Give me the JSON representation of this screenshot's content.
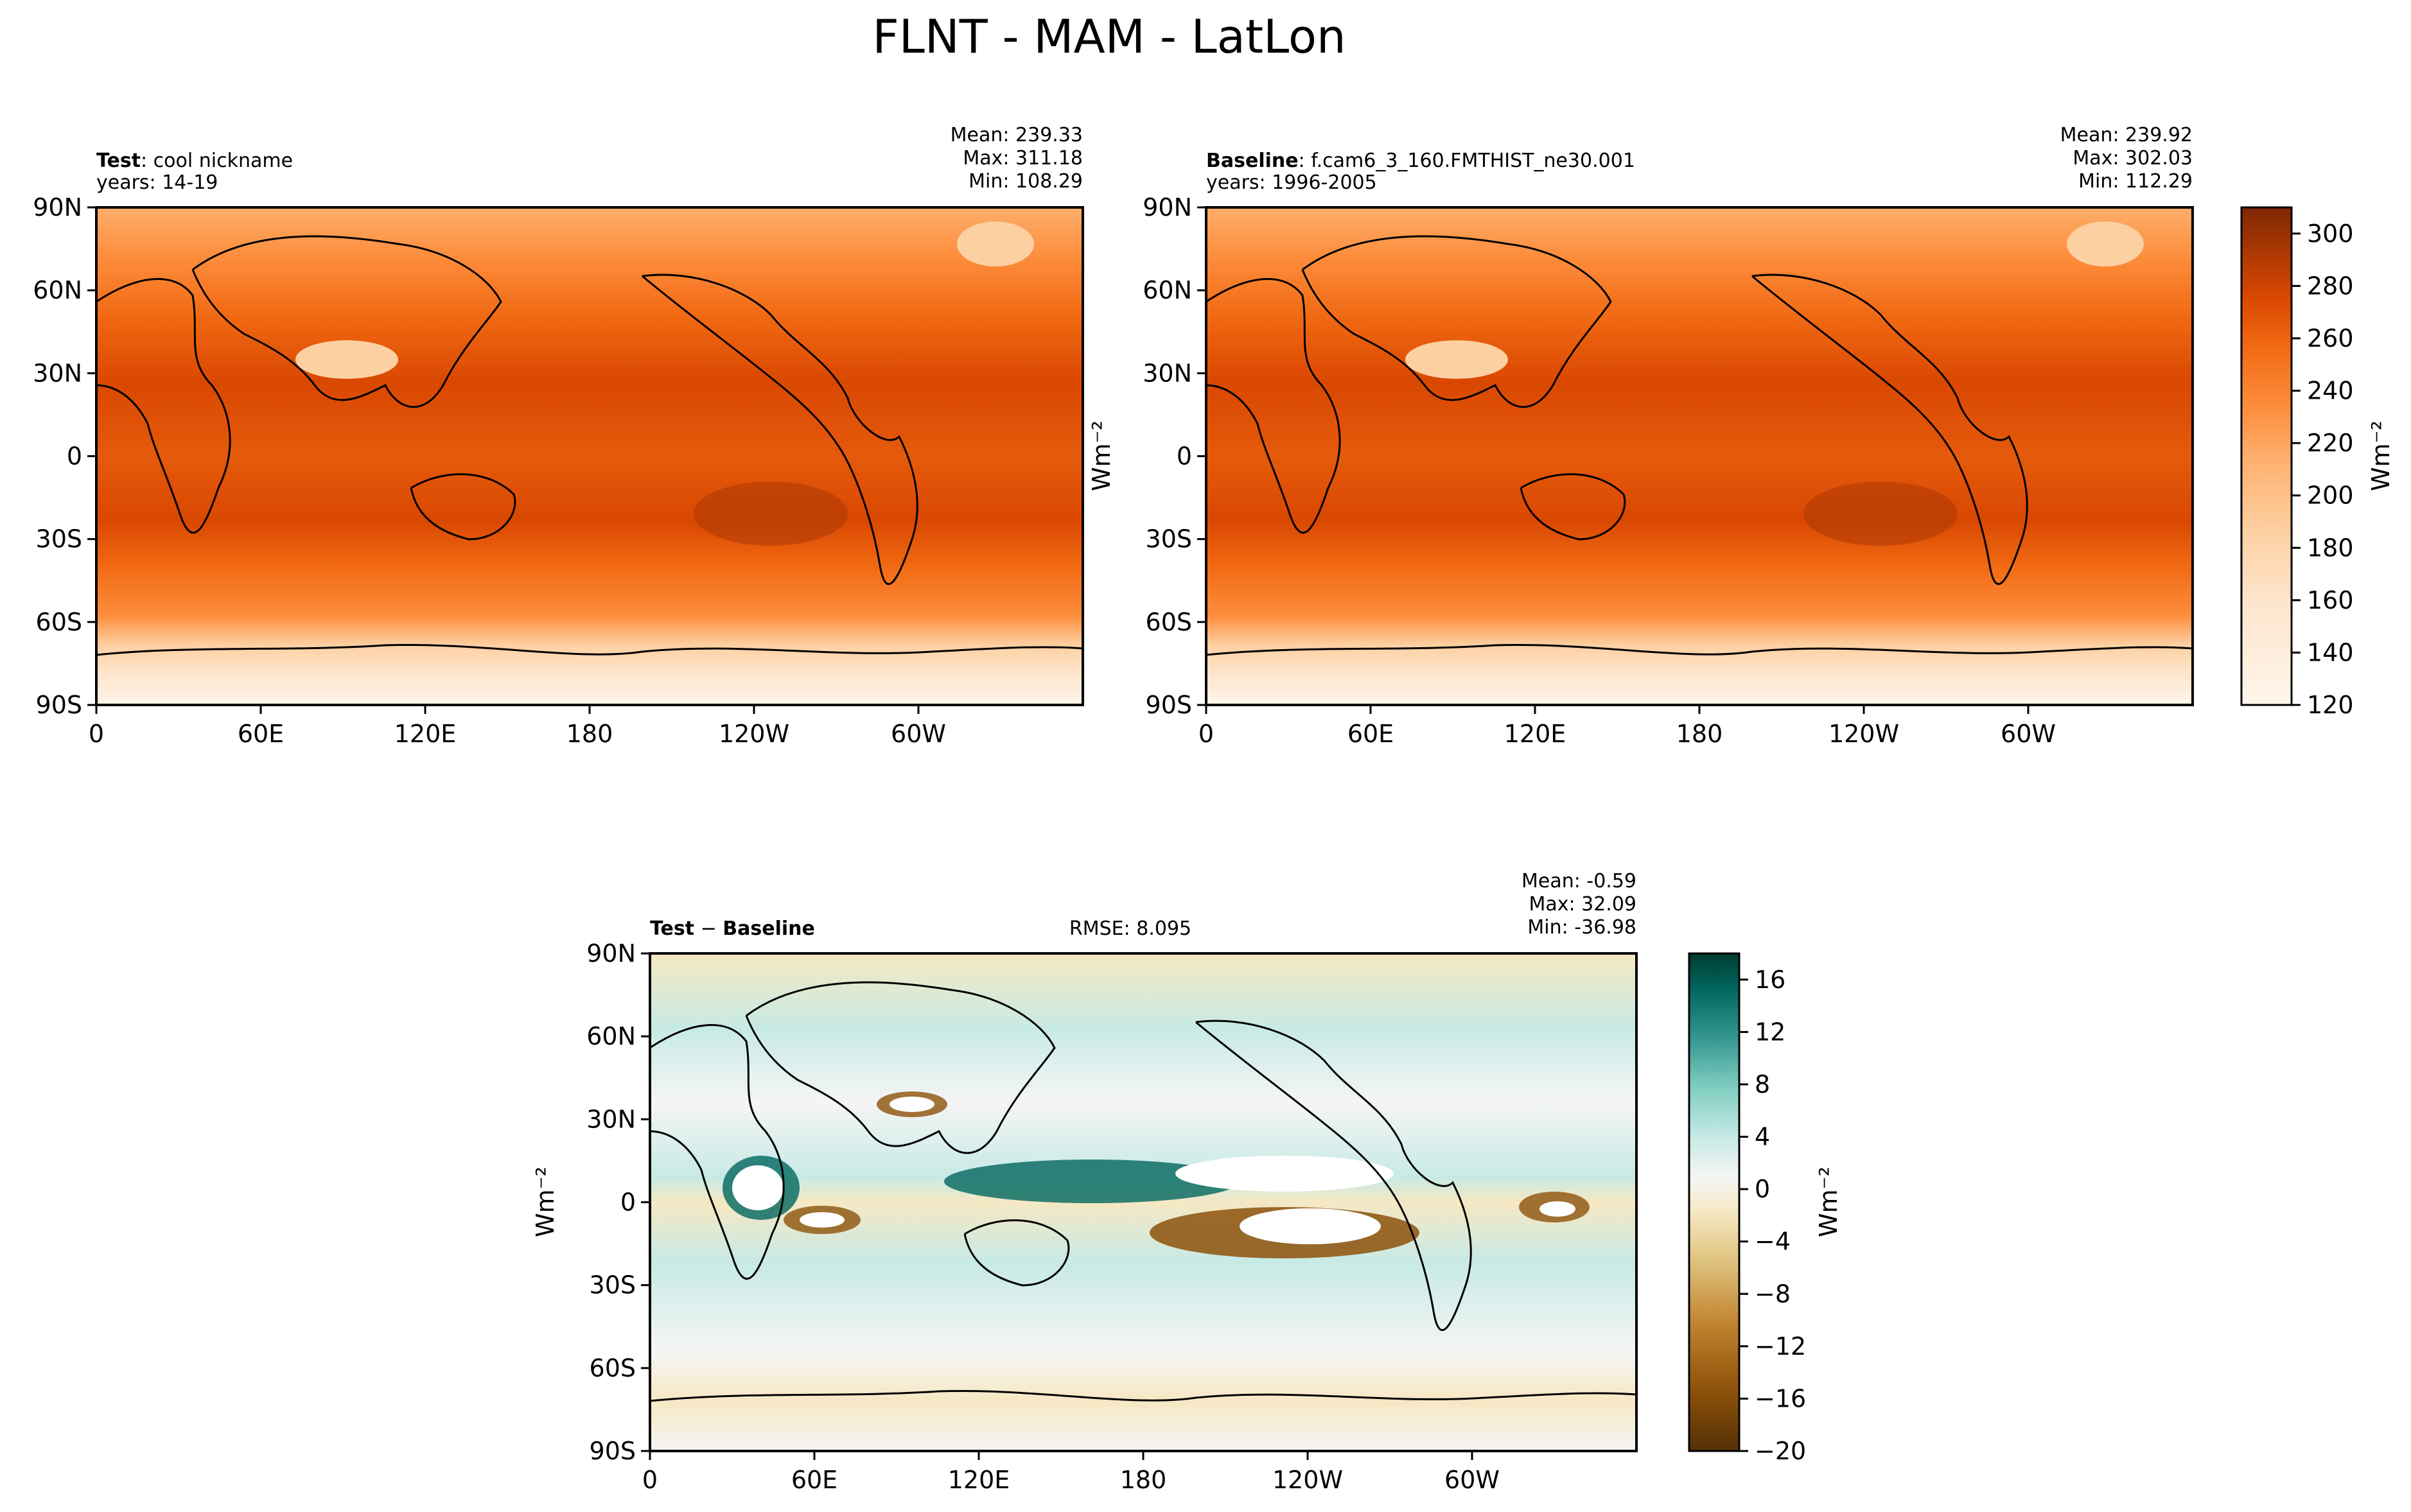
{
  "figure": {
    "title": "FLNT - MAM - LatLon"
  },
  "chart_data": [
    {
      "type": "heatmap",
      "panel": "test",
      "label_bold": "Test",
      "label_rest": ": cool nickname",
      "years": "years: 14-19",
      "stats": {
        "mean": "Mean: 239.33",
        "max": "Max: 311.18",
        "min": "Min: 108.29"
      },
      "x_ticks": [
        "0",
        "60E",
        "120E",
        "180",
        "120W",
        "60W"
      ],
      "x_tick_lon": [
        0,
        60,
        120,
        180,
        240,
        300
      ],
      "y_ticks": [
        "90N",
        "60N",
        "30N",
        "0",
        "30S",
        "60S",
        "90S"
      ],
      "y_tick_lat": [
        90,
        60,
        30,
        0,
        -30,
        -60,
        -90
      ],
      "xlim": [
        0,
        360
      ],
      "ylim": [
        -90,
        90
      ],
      "units": "Wm⁻²",
      "colormap": "Oranges",
      "value_range": [
        120,
        310
      ]
    },
    {
      "type": "heatmap",
      "panel": "baseline",
      "label_bold": "Baseline",
      "label_rest": ": f.cam6_3_160.FMTHIST_ne30.001",
      "years": "years: 1996-2005",
      "stats": {
        "mean": "Mean: 239.92",
        "max": "Max: 302.03",
        "min": "Min: 112.29"
      },
      "x_ticks": [
        "0",
        "60E",
        "120E",
        "180",
        "120W",
        "60W"
      ],
      "x_tick_lon": [
        0,
        60,
        120,
        180,
        240,
        300
      ],
      "y_ticks": [
        "90N",
        "60N",
        "30N",
        "0",
        "30S",
        "60S",
        "90S"
      ],
      "y_tick_lat": [
        90,
        60,
        30,
        0,
        -30,
        -60,
        -90
      ],
      "xlim": [
        0,
        360
      ],
      "ylim": [
        -90,
        90
      ],
      "units": "Wm⁻²",
      "colormap": "Oranges",
      "colorbar_ticks": [
        "120",
        "140",
        "160",
        "180",
        "200",
        "220",
        "240",
        "260",
        "280",
        "300"
      ],
      "colorbar_values": [
        120,
        140,
        160,
        180,
        200,
        220,
        240,
        260,
        280,
        300
      ],
      "colorbar_range": [
        120,
        310
      ]
    },
    {
      "type": "heatmap",
      "panel": "difference",
      "label_bold_a": "Test",
      "label_sep": " − ",
      "label_bold_b": "Baseline",
      "rmse": "RMSE: 8.095",
      "stats": {
        "mean": "Mean: -0.59",
        "max": "Max: 32.09",
        "min": "Min: -36.98"
      },
      "x_ticks": [
        "0",
        "60E",
        "120E",
        "180",
        "120W",
        "60W"
      ],
      "x_tick_lon": [
        0,
        60,
        120,
        180,
        240,
        300
      ],
      "y_ticks": [
        "90N",
        "60N",
        "30N",
        "0",
        "30S",
        "60S",
        "90S"
      ],
      "y_tick_lat": [
        90,
        60,
        30,
        0,
        -30,
        -60,
        -90
      ],
      "xlim": [
        0,
        360
      ],
      "ylim": [
        -90,
        90
      ],
      "units": "Wm⁻²",
      "colormap": "BrBG",
      "colorbar_ticks": [
        "16",
        "12",
        "8",
        "4",
        "0",
        "−4",
        "−8",
        "−12",
        "−16",
        "−20"
      ],
      "colorbar_values": [
        16,
        12,
        8,
        4,
        0,
        -4,
        -8,
        -12,
        -16,
        -20
      ],
      "colorbar_range": [
        -20,
        18
      ]
    }
  ],
  "colors": {
    "orange_scale": [
      "#fff5eb",
      "#fee6ce",
      "#fdd0a2",
      "#fdae6b",
      "#fd8d3c",
      "#f16913",
      "#d94801",
      "#a63603",
      "#7f2704"
    ],
    "brbg_scale": [
      "#543005",
      "#8c510a",
      "#bf812d",
      "#dfc27d",
      "#f6e8c3",
      "#f5f5f5",
      "#c7eae5",
      "#80cdc1",
      "#35978f",
      "#01665e",
      "#003c30"
    ]
  }
}
